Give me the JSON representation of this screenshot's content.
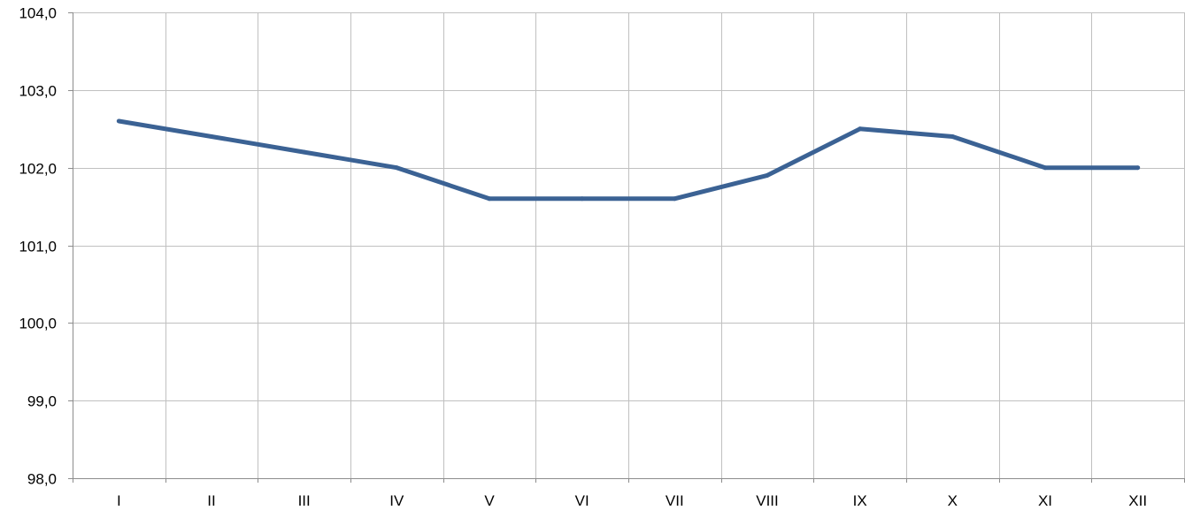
{
  "chart_data": {
    "type": "line",
    "title": "",
    "xlabel": "",
    "ylabel": "",
    "categories": [
      "I",
      "II",
      "III",
      "IV",
      "V",
      "VI",
      "VII",
      "VIII",
      "IX",
      "X",
      "XI",
      "XII"
    ],
    "series": [
      {
        "values": [
          102.6,
          102.4,
          102.2,
          102.0,
          101.6,
          101.6,
          101.6,
          101.9,
          102.5,
          102.4,
          102.0,
          102.0
        ]
      }
    ],
    "ylim": [
      98.0,
      104.0
    ],
    "ytick_values": [
      98.0,
      99.0,
      100.0,
      101.0,
      102.0,
      103.0,
      104.0
    ],
    "ytick_labels": [
      "98,0",
      "99,0",
      "100,0",
      "101,0",
      "102,0",
      "103,0",
      "104,0"
    ],
    "grid": true,
    "legend": "none",
    "colors": {
      "line": "#3b6294",
      "grid": "#c0c0c0",
      "axis": "#8c8c8c",
      "text": "#000000"
    }
  }
}
